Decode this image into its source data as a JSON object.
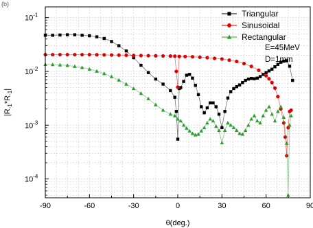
{
  "corner_label": "(b)",
  "chart_data": {
    "type": "line",
    "title": "",
    "xlabel": "θ(deg.)",
    "ylabel": "|R₋₁*R₋₁|",
    "ylabel_parts": {
      "main": "|R",
      "sub1": "-1",
      "mid": "*R",
      "sub2": "-1",
      "end": "|"
    },
    "xlim": [
      -90,
      90
    ],
    "xticks": [
      -90,
      -60,
      -30,
      0,
      30,
      60,
      90
    ],
    "xtick_labels": [
      "-90",
      "-60",
      "-30",
      "0",
      "30",
      "60",
      "90"
    ],
    "ylim_log10": [
      -4.35,
      -0.8
    ],
    "yticks": [
      {
        "exp": "-1",
        "base": "10"
      },
      {
        "exp": "-2",
        "base": "10"
      },
      {
        "exp": "-3",
        "base": "10"
      },
      {
        "exp": "-4",
        "base": "10"
      }
    ],
    "yscale": "log",
    "grid": true,
    "legend_position": "top-right",
    "annotations": [
      "E=45MeV",
      "D=1mm"
    ],
    "series": [
      {
        "name": "Triangular",
        "color": "#000000",
        "marker": "square",
        "points": [
          [
            -90,
            0.047
          ],
          [
            -85,
            0.047
          ],
          [
            -80,
            0.0475
          ],
          [
            -75,
            0.048
          ],
          [
            -70,
            0.048
          ],
          [
            -65,
            0.047
          ],
          [
            -60,
            0.046
          ],
          [
            -55,
            0.044
          ],
          [
            -50,
            0.041
          ],
          [
            -45,
            0.036
          ],
          [
            -40,
            0.03
          ],
          [
            -35,
            0.024
          ],
          [
            -30,
            0.018
          ],
          [
            -25,
            0.013
          ],
          [
            -20,
            0.0095
          ],
          [
            -15,
            0.0072
          ],
          [
            -10,
            0.0058
          ],
          [
            -5,
            0.0044
          ],
          [
            -2,
            0.0033
          ],
          [
            -1,
            0.0018
          ],
          [
            0,
            0.00055
          ],
          [
            1,
            0.0048
          ],
          [
            2,
            0.005
          ],
          [
            4,
            0.0065
          ],
          [
            6,
            0.0085
          ],
          [
            8,
            0.0088
          ],
          [
            10,
            0.0075
          ],
          [
            12,
            0.0055
          ],
          [
            14,
            0.0037
          ],
          [
            16,
            0.0022
          ],
          [
            18,
            0.0017
          ],
          [
            20,
            0.0021
          ],
          [
            22,
            0.0026
          ],
          [
            24,
            0.0026
          ],
          [
            26,
            0.0022
          ],
          [
            28,
            0.0016
          ],
          [
            30,
            0.0009
          ],
          [
            32,
            0.0018
          ],
          [
            34,
            0.0032
          ],
          [
            36,
            0.0042
          ],
          [
            38,
            0.0048
          ],
          [
            40,
            0.0052
          ],
          [
            42,
            0.0056
          ],
          [
            44,
            0.0062
          ],
          [
            46,
            0.0068
          ],
          [
            48,
            0.0072
          ],
          [
            50,
            0.0074
          ],
          [
            52,
            0.0073
          ],
          [
            54,
            0.0075
          ],
          [
            56,
            0.008
          ],
          [
            58,
            0.0088
          ],
          [
            60,
            0.0095
          ],
          [
            62,
            0.0102
          ],
          [
            64,
            0.011
          ],
          [
            66,
            0.0122
          ],
          [
            68,
            0.0135
          ],
          [
            70,
            0.0148
          ],
          [
            72,
            0.0155
          ],
          [
            74,
            0.0158
          ],
          [
            76,
            0.0125
          ],
          [
            78,
            0.0068
          ]
        ]
      },
      {
        "name": "Sinusoidal",
        "color": "#e00000",
        "marker": "circle",
        "points": [
          [
            -90,
            0.0205
          ],
          [
            -85,
            0.0205
          ],
          [
            -80,
            0.0205
          ],
          [
            -75,
            0.0205
          ],
          [
            -70,
            0.0205
          ],
          [
            -65,
            0.0205
          ],
          [
            -60,
            0.0205
          ],
          [
            -55,
            0.0204
          ],
          [
            -50,
            0.0203
          ],
          [
            -45,
            0.0202
          ],
          [
            -40,
            0.0201
          ],
          [
            -35,
            0.02
          ],
          [
            -30,
            0.0198
          ],
          [
            -25,
            0.0197
          ],
          [
            -20,
            0.0196
          ],
          [
            -15,
            0.0195
          ],
          [
            -10,
            0.0194
          ],
          [
            -5,
            0.0193
          ],
          [
            -2,
            0.0192
          ],
          [
            -1,
            0.01
          ],
          [
            0,
            0.0051
          ],
          [
            1,
            0.019
          ],
          [
            5,
            0.0189
          ],
          [
            10,
            0.0187
          ],
          [
            15,
            0.0184
          ],
          [
            20,
            0.018
          ],
          [
            25,
            0.0175
          ],
          [
            30,
            0.017
          ],
          [
            35,
            0.0162
          ],
          [
            40,
            0.0153
          ],
          [
            45,
            0.014
          ],
          [
            50,
            0.0124
          ],
          [
            55,
            0.0105
          ],
          [
            60,
            0.0083
          ],
          [
            62,
            0.0073
          ],
          [
            64,
            0.0062
          ],
          [
            66,
            0.0049
          ],
          [
            68,
            0.0034
          ],
          [
            70,
            0.002
          ],
          [
            72,
            0.0011
          ],
          [
            73,
            0.0006
          ],
          [
            74,
            0.00027
          ],
          [
            75,
            0.0009
          ],
          [
            76,
            0.0018
          ],
          [
            77,
            0.0019
          ]
        ]
      },
      {
        "name": "Rectangular",
        "color": "#2e9e2e",
        "marker": "triangle",
        "points": [
          [
            -90,
            0.0135
          ],
          [
            -85,
            0.0134
          ],
          [
            -80,
            0.0132
          ],
          [
            -75,
            0.0129
          ],
          [
            -70,
            0.0124
          ],
          [
            -65,
            0.0118
          ],
          [
            -60,
            0.011
          ],
          [
            -55,
            0.0101
          ],
          [
            -50,
            0.0091
          ],
          [
            -45,
            0.008
          ],
          [
            -40,
            0.0069
          ],
          [
            -35,
            0.0058
          ],
          [
            -30,
            0.0048
          ],
          [
            -25,
            0.0039
          ],
          [
            -20,
            0.0031
          ],
          [
            -15,
            0.0024
          ],
          [
            -10,
            0.0019
          ],
          [
            -5,
            0.0016
          ],
          [
            -2,
            0.0015
          ],
          [
            0,
            0.0013
          ],
          [
            2,
            0.0012
          ],
          [
            4,
            0.001
          ],
          [
            6,
            0.00088
          ],
          [
            8,
            0.00078
          ],
          [
            10,
            0.0007
          ],
          [
            12,
            0.00066
          ],
          [
            14,
            0.00068
          ],
          [
            16,
            0.00078
          ],
          [
            18,
            0.0009
          ],
          [
            20,
            0.0011
          ],
          [
            22,
            0.0013
          ],
          [
            24,
            0.0012
          ],
          [
            26,
            0.00095
          ],
          [
            28,
            0.0008
          ],
          [
            30,
            0.00047
          ],
          [
            32,
            0.0008
          ],
          [
            34,
            0.0011
          ],
          [
            36,
            0.001
          ],
          [
            38,
            0.0009
          ],
          [
            40,
            0.0008
          ],
          [
            42,
            0.0007
          ],
          [
            44,
            0.00068
          ],
          [
            46,
            0.0008
          ],
          [
            48,
            0.001
          ],
          [
            50,
            0.0013
          ],
          [
            52,
            0.0015
          ],
          [
            54,
            0.0012
          ],
          [
            56,
            0.0011
          ],
          [
            58,
            0.0015
          ],
          [
            60,
            0.0019
          ],
          [
            62,
            0.0022
          ],
          [
            64,
            0.0016
          ],
          [
            66,
            0.0012
          ],
          [
            68,
            0.0018
          ],
          [
            70,
            0.0022
          ],
          [
            72,
            0.0014
          ],
          [
            74,
            0.00046
          ],
          [
            75,
            5e-05
          ],
          [
            76,
            0.001
          ],
          [
            77,
            0.0015
          ]
        ]
      }
    ]
  }
}
